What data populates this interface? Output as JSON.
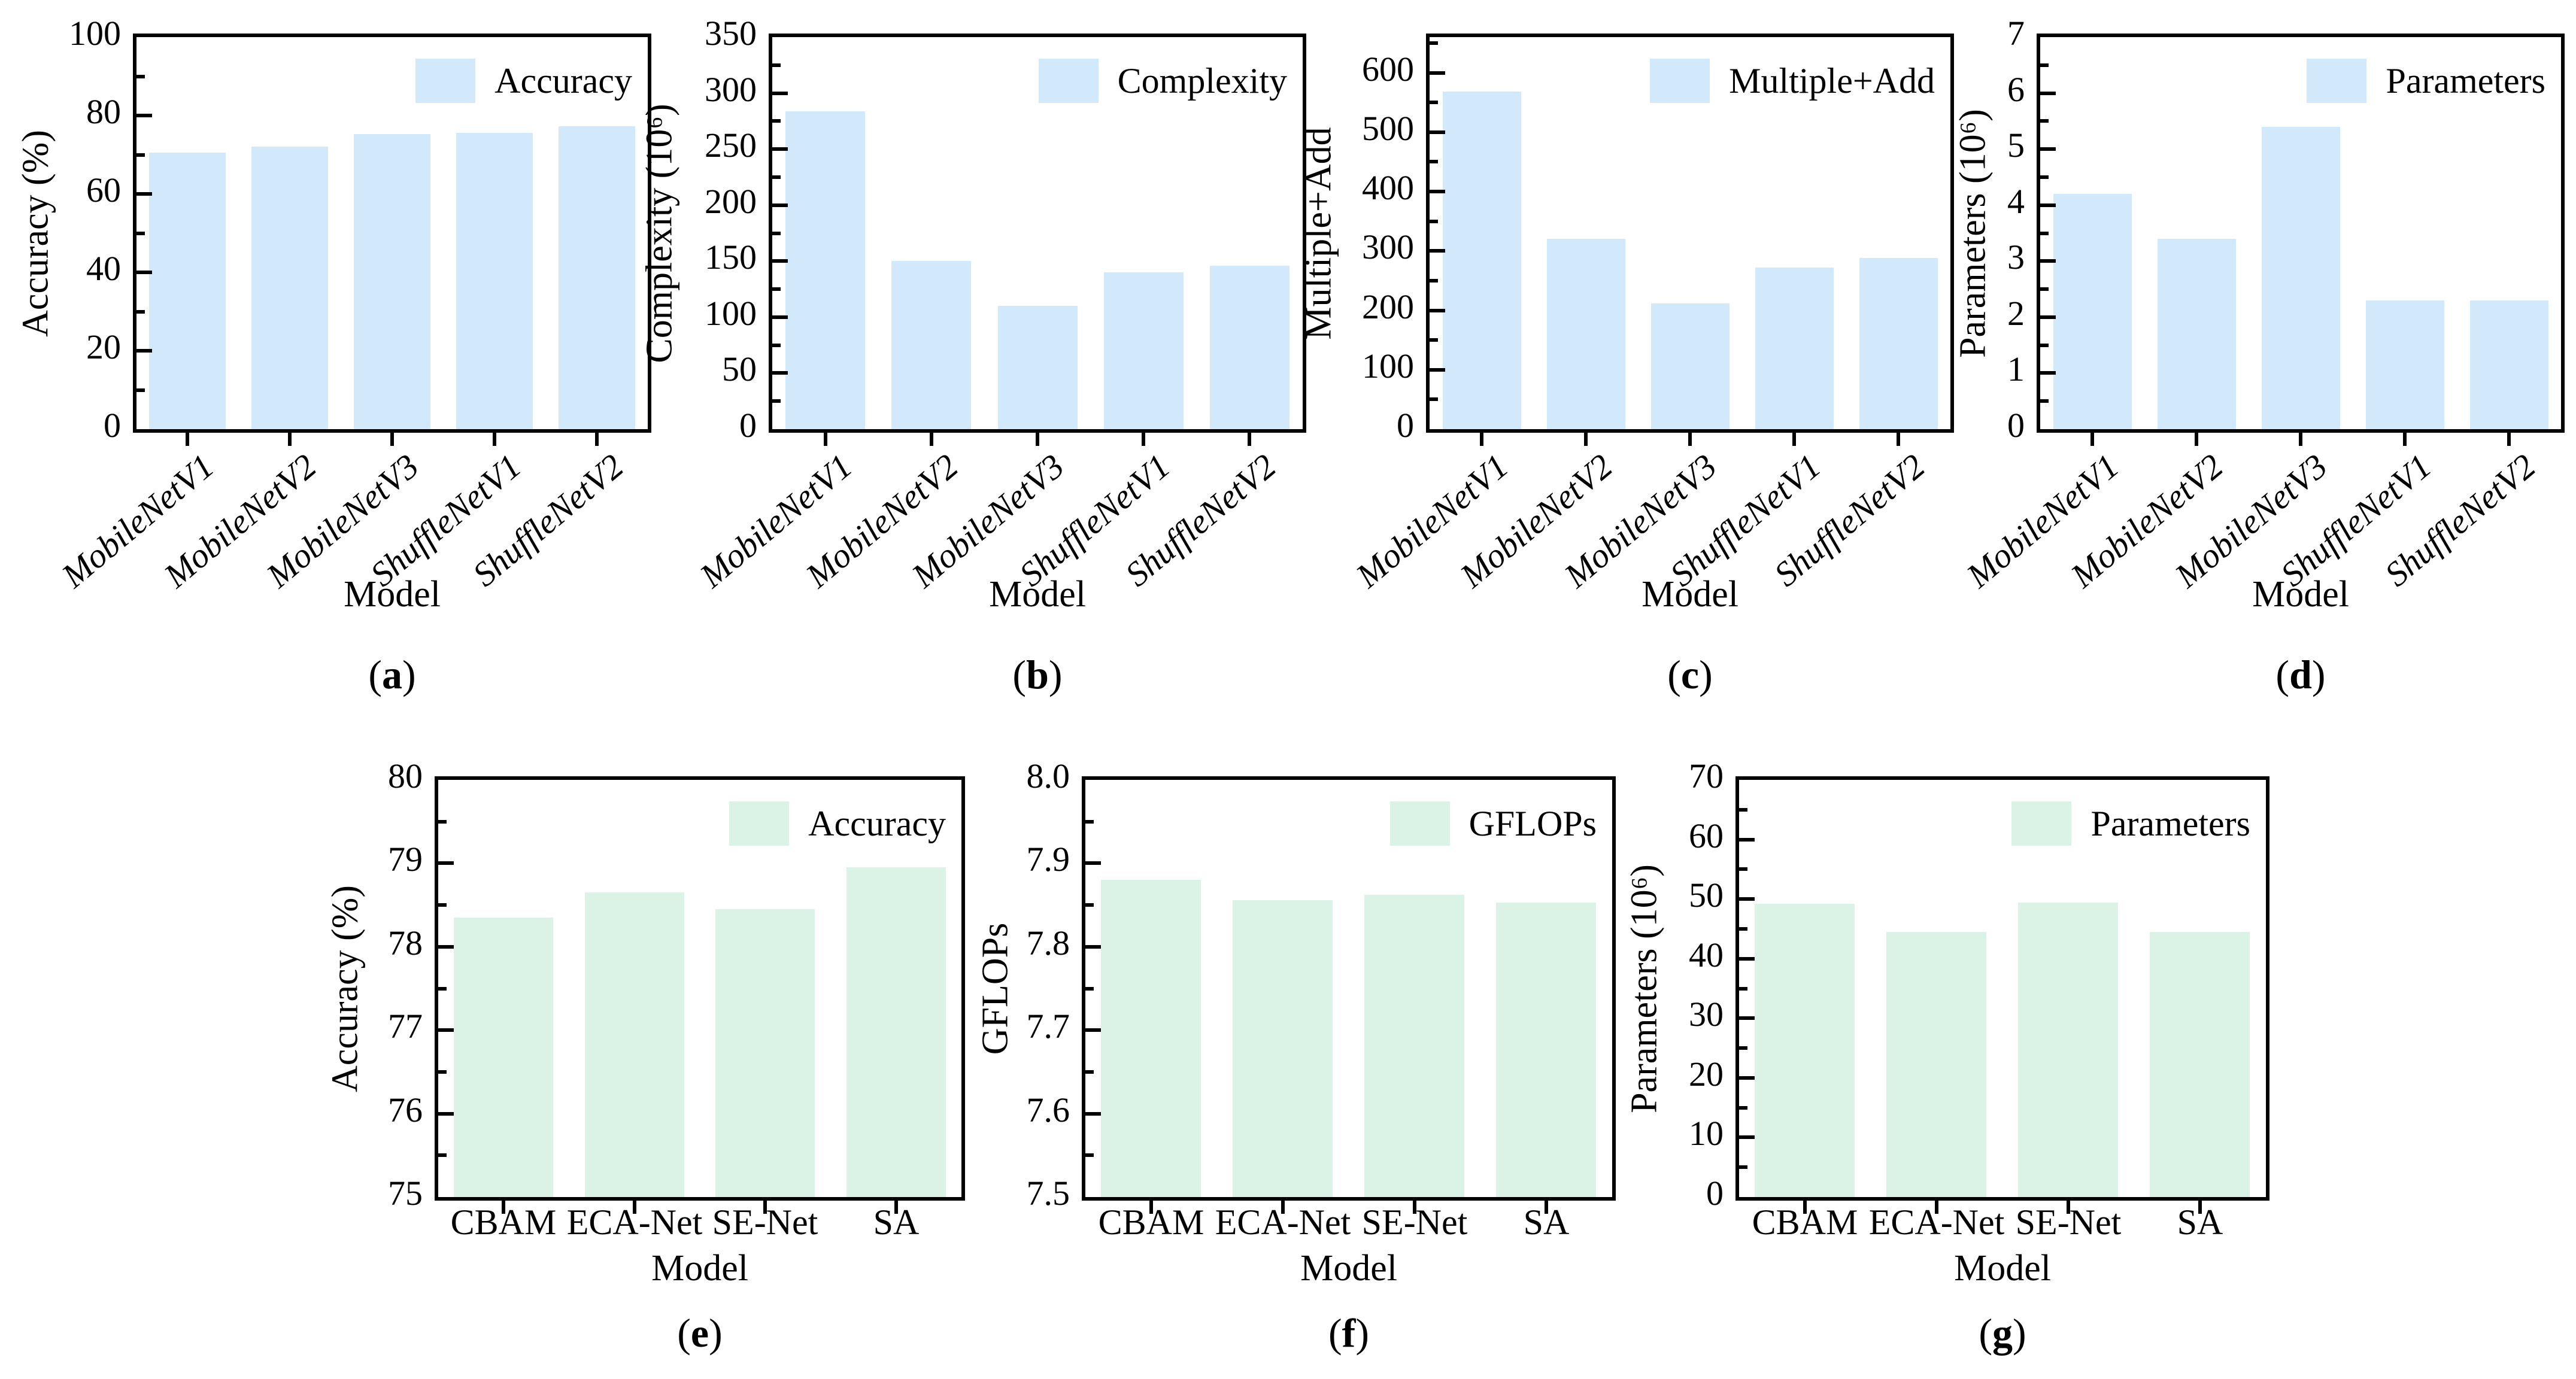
{
  "figure": {
    "background": "#ffffff",
    "xlabel": "Model"
  },
  "colors": {
    "bar_blue": "#d2e9fc",
    "bar_green": "#dbf2e7",
    "axis": "#000000"
  },
  "chart_data": [
    {
      "id": "a",
      "type": "bar",
      "caption": {
        "open": "(",
        "letter": "a",
        "close": ")"
      },
      "legend": "Accuracy",
      "ylabel": "Accuracy (%)",
      "xlabel": "Model",
      "categories": [
        "MobileNetV1",
        "MobileNetV2",
        "MobileNetV3",
        "ShuffleNetV1",
        "ShuffleNetV2"
      ],
      "values": [
        70.6,
        72.0,
        75.2,
        75.6,
        77.3
      ],
      "ylim": [
        0,
        100
      ],
      "yticks": [
        0,
        20,
        40,
        60,
        80,
        100
      ],
      "ytick_labels": [
        "0",
        "20",
        "40",
        "60",
        "80",
        "100"
      ],
      "bar_color": "#d2e9fc",
      "rotated_xticks": true,
      "legend_position": "top-right",
      "grid": false
    },
    {
      "id": "b",
      "type": "bar",
      "caption": {
        "open": "(",
        "letter": "b",
        "close": ")"
      },
      "legend": "Complexity",
      "ylabel": "Complexity (10⁶)",
      "xlabel": "Model",
      "categories": [
        "MobileNetV1",
        "MobileNetV2",
        "MobileNetV3",
        "ShuffleNetV1",
        "ShuffleNetV2"
      ],
      "values": [
        284,
        150,
        110,
        140,
        146
      ],
      "ylim": [
        0,
        350
      ],
      "yticks": [
        0,
        50,
        100,
        150,
        200,
        250,
        300,
        350
      ],
      "ytick_labels": [
        "0",
        "50",
        "100",
        "150",
        "200",
        "250",
        "300",
        "350"
      ],
      "bar_color": "#d2e9fc",
      "rotated_xticks": true,
      "legend_position": "top-right",
      "grid": false
    },
    {
      "id": "c",
      "type": "bar",
      "caption": {
        "open": "(",
        "letter": "c",
        "close": ")"
      },
      "legend": "Multiple+Add",
      "ylabel": "Multiple+Add",
      "xlabel": "Model",
      "categories": [
        "MobileNetV1",
        "MobileNetV2",
        "MobileNetV3",
        "ShuffleNetV1",
        "ShuffleNetV2"
      ],
      "values": [
        568,
        320,
        212,
        272,
        288
      ],
      "ylim": [
        0,
        660
      ],
      "yticks": [
        0,
        100,
        200,
        300,
        400,
        500,
        600
      ],
      "ytick_labels": [
        "0",
        "100",
        "200",
        "300",
        "400",
        "500",
        "600"
      ],
      "bar_color": "#d2e9fc",
      "rotated_xticks": true,
      "legend_position": "top-right",
      "grid": false
    },
    {
      "id": "d",
      "type": "bar",
      "caption": {
        "open": "(",
        "letter": "d",
        "close": ")"
      },
      "legend": "Parameters",
      "ylabel": "Parameters (10⁶)",
      "xlabel": "Model",
      "categories": [
        "MobileNetV1",
        "MobileNetV2",
        "MobileNetV3",
        "ShuffleNetV1",
        "ShuffleNetV2"
      ],
      "values": [
        4.2,
        3.4,
        5.4,
        2.3,
        2.3
      ],
      "ylim": [
        0,
        7
      ],
      "yticks": [
        0,
        1,
        2,
        3,
        4,
        5,
        6,
        7
      ],
      "ytick_labels": [
        "0",
        "1",
        "2",
        "3",
        "4",
        "5",
        "6",
        "7"
      ],
      "bar_color": "#d2e9fc",
      "rotated_xticks": true,
      "legend_position": "top-right",
      "grid": false
    },
    {
      "id": "e",
      "type": "bar",
      "caption": {
        "open": "(",
        "letter": "e",
        "close": ")"
      },
      "legend": "Accuracy",
      "ylabel": "Accuracy (%)",
      "xlabel": "Model",
      "categories": [
        "CBAM",
        "ECA-Net",
        "SE-Net",
        "SA"
      ],
      "values": [
        78.35,
        78.65,
        78.45,
        78.95
      ],
      "ylim": [
        75,
        80
      ],
      "yticks": [
        75,
        76,
        77,
        78,
        79,
        80
      ],
      "ytick_labels": [
        "75",
        "76",
        "77",
        "78",
        "79",
        "80"
      ],
      "bar_color": "#dbf2e7",
      "rotated_xticks": false,
      "legend_position": "top-right",
      "grid": false
    },
    {
      "id": "f",
      "type": "bar",
      "caption": {
        "open": "(",
        "letter": "f",
        "close": ")"
      },
      "legend": "GFLOPs",
      "ylabel": "GFLOPs",
      "xlabel": "Model",
      "categories": [
        "CBAM",
        "ECA-Net",
        "SE-Net",
        "SA"
      ],
      "values": [
        7.88,
        7.856,
        7.862,
        7.853
      ],
      "ylim": [
        7.5,
        8.0
      ],
      "yticks": [
        7.5,
        7.6,
        7.7,
        7.8,
        7.9,
        8.0
      ],
      "ytick_labels": [
        "7.5",
        "7.6",
        "7.7",
        "7.8",
        "7.9",
        "8.0"
      ],
      "bar_color": "#dbf2e7",
      "rotated_xticks": false,
      "legend_position": "top-right",
      "grid": false
    },
    {
      "id": "g",
      "type": "bar",
      "caption": {
        "open": "(",
        "letter": "g",
        "close": ")"
      },
      "legend": "Parameters",
      "ylabel": "Parameters (10⁶)",
      "xlabel": "Model",
      "categories": [
        "CBAM",
        "ECA-Net",
        "SE-Net",
        "SA"
      ],
      "values": [
        49.2,
        44.5,
        49.4,
        44.5
      ],
      "ylim": [
        0,
        70
      ],
      "yticks": [
        0,
        10,
        20,
        30,
        40,
        50,
        60,
        70
      ],
      "ytick_labels": [
        "0",
        "10",
        "20",
        "30",
        "40",
        "50",
        "60",
        "70"
      ],
      "bar_color": "#dbf2e7",
      "rotated_xticks": false,
      "legend_position": "top-right",
      "grid": false
    }
  ]
}
